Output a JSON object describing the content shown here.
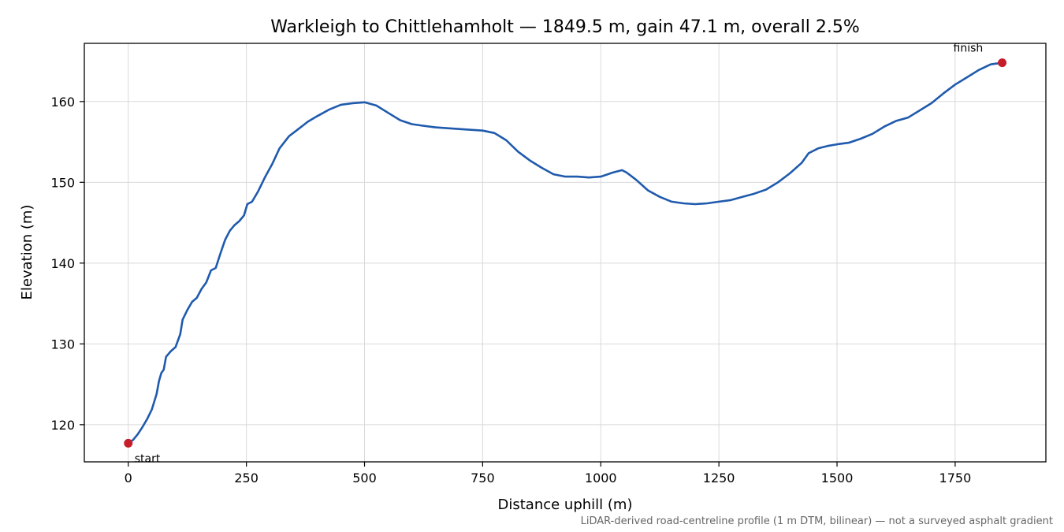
{
  "chart_data": {
    "type": "line",
    "title": "Warkleigh to Chittlehamholt — 1849.5 m, gain 47.1 m, overall 2.5%",
    "xlabel": "Distance uphill (m)",
    "ylabel": "Elevation (m)",
    "xlim": [
      -93,
      1942
    ],
    "ylim": [
      115.4,
      167.2
    ],
    "x_ticks": [
      0,
      250,
      500,
      750,
      1000,
      1250,
      1500,
      1750
    ],
    "y_ticks": [
      120,
      130,
      140,
      150,
      160
    ],
    "grid": true,
    "series": [
      {
        "color": "#1f5aad",
        "points": [
          [
            0,
            117.7
          ],
          [
            10,
            118.1
          ],
          [
            20,
            118.8
          ],
          [
            30,
            119.7
          ],
          [
            40,
            120.7
          ],
          [
            50,
            121.9
          ],
          [
            60,
            123.8
          ],
          [
            65,
            125.4
          ],
          [
            70,
            126.4
          ],
          [
            75,
            126.8
          ],
          [
            80,
            128.4
          ],
          [
            90,
            129.1
          ],
          [
            100,
            129.6
          ],
          [
            110,
            131.2
          ],
          [
            115,
            133.0
          ],
          [
            125,
            134.2
          ],
          [
            135,
            135.2
          ],
          [
            145,
            135.7
          ],
          [
            155,
            136.8
          ],
          [
            165,
            137.6
          ],
          [
            175,
            139.1
          ],
          [
            185,
            139.4
          ],
          [
            195,
            141.2
          ],
          [
            205,
            142.9
          ],
          [
            215,
            144.0
          ],
          [
            225,
            144.7
          ],
          [
            235,
            145.2
          ],
          [
            245,
            145.9
          ],
          [
            252,
            147.3
          ],
          [
            262,
            147.6
          ],
          [
            275,
            148.9
          ],
          [
            290,
            150.7
          ],
          [
            305,
            152.3
          ],
          [
            320,
            154.2
          ],
          [
            340,
            155.7
          ],
          [
            360,
            156.6
          ],
          [
            380,
            157.5
          ],
          [
            400,
            158.2
          ],
          [
            425,
            159.0
          ],
          [
            450,
            159.6
          ],
          [
            475,
            159.8
          ],
          [
            500,
            159.9
          ],
          [
            525,
            159.5
          ],
          [
            550,
            158.6
          ],
          [
            575,
            157.7
          ],
          [
            600,
            157.2
          ],
          [
            625,
            157.0
          ],
          [
            650,
            156.8
          ],
          [
            700,
            156.6
          ],
          [
            750,
            156.4
          ],
          [
            775,
            156.1
          ],
          [
            800,
            155.2
          ],
          [
            825,
            153.8
          ],
          [
            850,
            152.7
          ],
          [
            875,
            151.8
          ],
          [
            900,
            151.0
          ],
          [
            925,
            150.7
          ],
          [
            950,
            150.7
          ],
          [
            975,
            150.6
          ],
          [
            1000,
            150.7
          ],
          [
            1025,
            151.2
          ],
          [
            1045,
            151.5
          ],
          [
            1055,
            151.2
          ],
          [
            1075,
            150.3
          ],
          [
            1100,
            149.0
          ],
          [
            1125,
            148.2
          ],
          [
            1150,
            147.6
          ],
          [
            1175,
            147.4
          ],
          [
            1200,
            147.3
          ],
          [
            1225,
            147.4
          ],
          [
            1250,
            147.6
          ],
          [
            1275,
            147.8
          ],
          [
            1300,
            148.2
          ],
          [
            1325,
            148.6
          ],
          [
            1350,
            149.1
          ],
          [
            1375,
            150.0
          ],
          [
            1400,
            151.1
          ],
          [
            1425,
            152.4
          ],
          [
            1440,
            153.6
          ],
          [
            1460,
            154.2
          ],
          [
            1480,
            154.5
          ],
          [
            1500,
            154.7
          ],
          [
            1525,
            154.9
          ],
          [
            1550,
            155.4
          ],
          [
            1575,
            156.0
          ],
          [
            1600,
            156.9
          ],
          [
            1625,
            157.6
          ],
          [
            1650,
            158.0
          ],
          [
            1675,
            158.9
          ],
          [
            1700,
            159.8
          ],
          [
            1725,
            161.0
          ],
          [
            1750,
            162.1
          ],
          [
            1775,
            163.0
          ],
          [
            1800,
            163.9
          ],
          [
            1825,
            164.6
          ],
          [
            1849.5,
            164.8
          ]
        ]
      }
    ],
    "markers": [
      {
        "x": 0,
        "y": 117.7,
        "label": "start"
      },
      {
        "x": 1849.5,
        "y": 164.8,
        "label": "finish"
      }
    ],
    "footnote": "LiDAR-derived road-centreline profile (1 m DTM, bilinear) — not a surveyed asphalt gradient"
  },
  "colors": {
    "line": "#1f5aad",
    "marker": "#c51d2a",
    "grid": "#d9d9d9"
  }
}
